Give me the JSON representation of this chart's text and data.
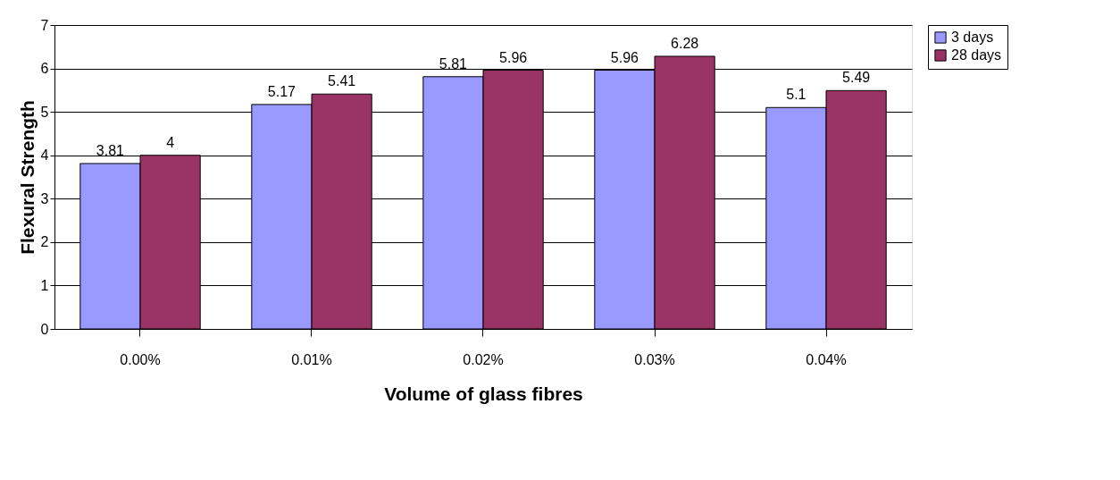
{
  "chart_data": {
    "type": "bar",
    "xlabel": "Volume of glass fibres",
    "ylabel": "Flexural Strength",
    "categories": [
      "0.00%",
      "0.01%",
      "0.02%",
      "0.03%",
      "0.04%"
    ],
    "series": [
      {
        "name": "3 days",
        "color": "#9999ff",
        "values": [
          3.81,
          5.17,
          5.81,
          5.96,
          5.1
        ]
      },
      {
        "name": "28 days",
        "color": "#993366",
        "values": [
          4,
          5.41,
          5.96,
          6.28,
          5.49
        ]
      }
    ],
    "ylim": [
      0,
      7
    ],
    "yticks": [
      0,
      1,
      2,
      3,
      4,
      5,
      6,
      7
    ],
    "grid": "y",
    "legend": "right",
    "data_labels": true
  }
}
